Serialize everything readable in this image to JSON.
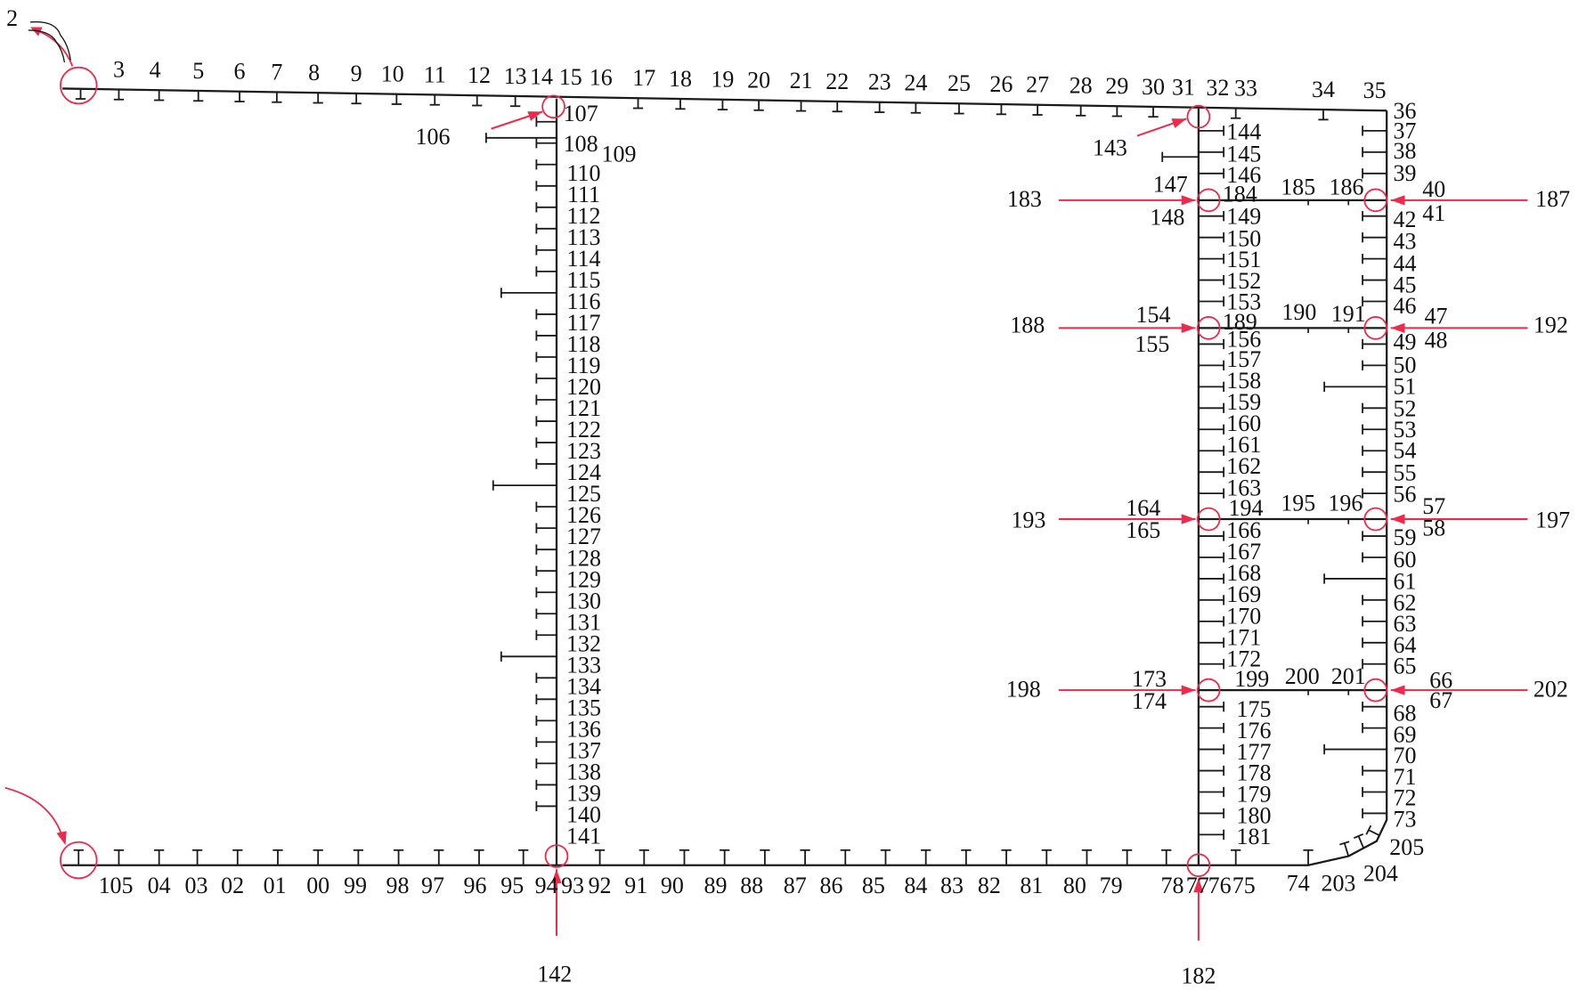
{
  "colors": {
    "structure": "#1a1a1a",
    "marker": "#ee2a4a"
  },
  "labels": {
    "top": [
      "3",
      "4",
      "5",
      "6",
      "7",
      "8",
      "9",
      "10",
      "11",
      "12",
      "13",
      "14",
      "15",
      "16",
      "17",
      "18",
      "19",
      "20",
      "21",
      "22",
      "23",
      "24",
      "25",
      "26",
      "27",
      "28",
      "29",
      "30",
      "31",
      "32",
      "33",
      "34",
      "35"
    ],
    "start": "2",
    "right_side": [
      "36",
      "37",
      "38",
      "39",
      "40",
      "41",
      "42",
      "43",
      "44",
      "45",
      "46",
      "47",
      "48",
      "49",
      "50",
      "51",
      "52",
      "53",
      "54",
      "55",
      "56",
      "57",
      "58",
      "59",
      "60",
      "61",
      "62",
      "63",
      "64",
      "65",
      "66",
      "67",
      "68",
      "69",
      "70",
      "71",
      "72",
      "73"
    ],
    "chine": [
      "205",
      "204",
      "203",
      "74"
    ],
    "bottom": [
      "75",
      "76",
      "77",
      "78",
      "79",
      "80",
      "81",
      "82",
      "83",
      "84",
      "85",
      "86",
      "87",
      "88",
      "89",
      "90",
      "91",
      "92",
      "93",
      "94",
      "95",
      "96",
      "97",
      "98",
      "99",
      "00",
      "01",
      "02",
      "03",
      "04",
      "105"
    ],
    "left_bulkhead": [
      "107",
      "108",
      "109",
      "110",
      "111",
      "112",
      "113",
      "114",
      "115",
      "116",
      "117",
      "118",
      "119",
      "120",
      "121",
      "122",
      "123",
      "124",
      "125",
      "126",
      "127",
      "128",
      "129",
      "130",
      "131",
      "132",
      "133",
      "134",
      "135",
      "136",
      "137",
      "138",
      "139",
      "140",
      "141"
    ],
    "inner_bulkhead": [
      "144",
      "145",
      "146",
      "147",
      "148",
      "184",
      "149",
      "150",
      "151",
      "152",
      "153",
      "154",
      "155",
      "189",
      "156",
      "157",
      "158",
      "159",
      "160",
      "161",
      "162",
      "163",
      "164",
      "165",
      "194",
      "166",
      "167",
      "168",
      "169",
      "170",
      "171",
      "172",
      "173",
      "174",
      "199",
      "175",
      "176",
      "177",
      "178",
      "179",
      "180",
      "181"
    ],
    "stringers": [
      "185",
      "186",
      "190",
      "191",
      "195",
      "196",
      "200",
      "201"
    ],
    "callouts": [
      "106",
      "143",
      "142",
      "182",
      "183",
      "187",
      "188",
      "192",
      "193",
      "197",
      "198",
      "202"
    ]
  }
}
